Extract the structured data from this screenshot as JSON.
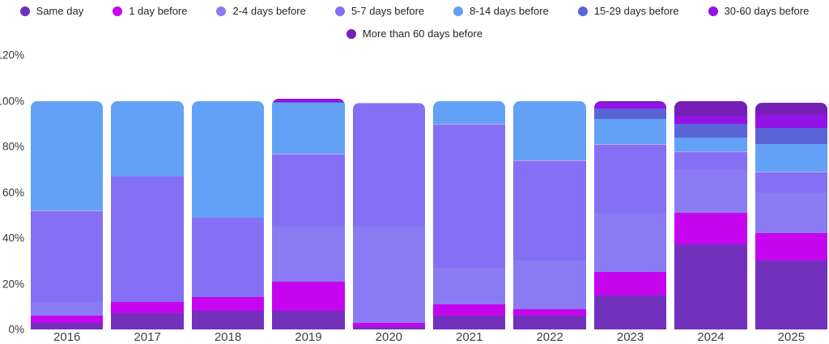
{
  "chart_data": {
    "type": "bar",
    "stacked": true,
    "unit": "%",
    "title": "",
    "xlabel": "",
    "ylabel": "",
    "categories": [
      "2016",
      "2017",
      "2018",
      "2019",
      "2020",
      "2021",
      "2022",
      "2023",
      "2024",
      "2025"
    ],
    "series": [
      {
        "name": "Same day",
        "color": "#7131BD",
        "values": [
          3,
          7,
          8,
          8,
          1,
          6,
          6,
          15,
          37,
          30
        ]
      },
      {
        "name": "1 day before",
        "color": "#C605EF",
        "values": [
          3,
          5,
          6,
          13,
          2,
          5,
          3,
          10,
          14,
          12
        ]
      },
      {
        "name": "2-4 days before",
        "color": "#8B7BF2",
        "values": [
          6,
          0,
          0,
          24,
          42,
          16,
          21,
          26,
          19,
          18
        ]
      },
      {
        "name": "5-7 days before",
        "color": "#8570F5",
        "values": [
          40,
          55,
          35,
          32,
          54,
          63,
          44,
          30,
          8,
          9
        ]
      },
      {
        "name": "8-14 days before",
        "color": "#63A1F6",
        "values": [
          48,
          33,
          51,
          22,
          0,
          10,
          26,
          11,
          6,
          12
        ]
      },
      {
        "name": "15-29 days before",
        "color": "#5B64D6",
        "values": [
          0,
          0,
          0,
          0.5,
          0,
          0,
          0,
          4.5,
          6,
          7
        ]
      },
      {
        "name": "30-60 days before",
        "color": "#9213E6",
        "values": [
          0,
          0,
          0,
          1.5,
          0,
          0,
          0,
          2.5,
          3,
          6
        ]
      },
      {
        "name": "More than 60 days before",
        "color": "#761FB8",
        "values": [
          0,
          0,
          0,
          0,
          0,
          0,
          0,
          1,
          7,
          5
        ]
      }
    ],
    "y_ticks": [
      "0%",
      "20%",
      "40%",
      "60%",
      "80%",
      "100%",
      "120%"
    ],
    "y_tick_values": [
      0,
      20,
      40,
      60,
      80,
      100,
      120
    ],
    "ylim": [
      0,
      120
    ],
    "grid": false,
    "legend_position": "top",
    "legend_rows": [
      7,
      1
    ]
  }
}
